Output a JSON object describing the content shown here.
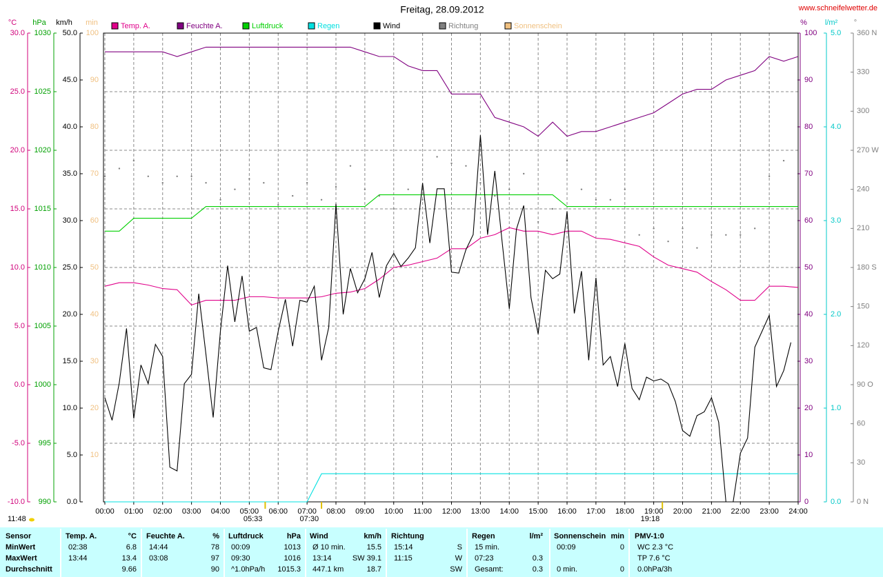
{
  "title": "Freitag, 28.09.2012",
  "source": "www.schneifelwetter.de",
  "chart_data": {
    "type": "line",
    "xlim": [
      0,
      24
    ],
    "xticks": [
      {
        "value": 0,
        "label": "00:00"
      },
      {
        "value": 1,
        "label": "01:00"
      },
      {
        "value": 2,
        "label": "02:00"
      },
      {
        "value": 3,
        "label": "03:00"
      },
      {
        "value": 4,
        "label": "04:00"
      },
      {
        "value": 5,
        "label": "05:00"
      },
      {
        "value": 6,
        "label": "06:00"
      },
      {
        "value": 7,
        "label": "07:00"
      },
      {
        "value": 8,
        "label": "08:00"
      },
      {
        "value": 9,
        "label": "09:00"
      },
      {
        "value": 10,
        "label": "10:00"
      },
      {
        "value": 11,
        "label": "11:00"
      },
      {
        "value": 12,
        "label": "12:00"
      },
      {
        "value": 13,
        "label": "13:00"
      },
      {
        "value": 14,
        "label": "14:00"
      },
      {
        "value": 15,
        "label": "15:00"
      },
      {
        "value": 16,
        "label": "16:00"
      },
      {
        "value": 17,
        "label": "17:00"
      },
      {
        "value": 18,
        "label": "18:00"
      },
      {
        "value": 19,
        "label": "19:00"
      },
      {
        "value": 20,
        "label": "20:00"
      },
      {
        "value": 21,
        "label": "21:00"
      },
      {
        "value": 22,
        "label": "22:00"
      },
      {
        "value": 23,
        "label": "23:00"
      },
      {
        "value": 24,
        "label": "24:00"
      }
    ],
    "grid": true,
    "legend": "top",
    "axes": [
      {
        "id": "temp",
        "unit": "°C",
        "color": "#d0007a",
        "lim": [
          -10,
          30
        ],
        "ticks": [
          {
            "value": -10,
            "label": "-10.0"
          },
          {
            "value": -5,
            "label": "-5.0"
          },
          {
            "value": 0,
            "label": "0.0"
          },
          {
            "value": 5,
            "label": "5.0"
          },
          {
            "value": 10,
            "label": "10.0"
          },
          {
            "value": 15,
            "label": "15.0"
          },
          {
            "value": 20,
            "label": "20.0"
          },
          {
            "value": 25,
            "label": "25.0"
          },
          {
            "value": 30,
            "label": "30.0"
          }
        ]
      },
      {
        "id": "pressure",
        "unit": "hPa",
        "color": "#00a000",
        "lim": [
          990,
          1030
        ],
        "ticks": [
          990,
          995,
          1000,
          1005,
          1010,
          1015,
          1020,
          1025,
          1030
        ]
      },
      {
        "id": "wind",
        "unit": "km/h",
        "color": "#000000",
        "lim": [
          0,
          50
        ],
        "ticks": [
          {
            "value": 0,
            "label": "0.0"
          },
          {
            "value": 5,
            "label": "5.0"
          },
          {
            "value": 10,
            "label": "10.0"
          },
          {
            "value": 15,
            "label": "15.0"
          },
          {
            "value": 20,
            "label": "20.0"
          },
          {
            "value": 25,
            "label": "25.0"
          },
          {
            "value": 30,
            "label": "30.0"
          },
          {
            "value": 35,
            "label": "35.0"
          },
          {
            "value": 40,
            "label": "40.0"
          },
          {
            "value": 45,
            "label": "45.0"
          },
          {
            "value": 50,
            "label": "50.0"
          }
        ]
      },
      {
        "id": "sun",
        "unit": "min",
        "color": "#f0c080",
        "lim": [
          0,
          100
        ],
        "ticks": [
          10,
          20,
          30,
          40,
          50,
          60,
          70,
          80,
          90,
          100
        ]
      },
      {
        "id": "humidity",
        "unit": "%",
        "color": "#800080",
        "lim": [
          0,
          100
        ],
        "ticks": [
          0,
          10,
          20,
          30,
          40,
          50,
          60,
          70,
          80,
          90,
          100
        ]
      },
      {
        "id": "rain",
        "unit": "l/m²",
        "color": "#00c8c8",
        "lim": [
          0,
          5
        ],
        "ticks": [
          {
            "value": 0,
            "label": "0.0"
          },
          {
            "value": 1,
            "label": "1.0"
          },
          {
            "value": 2,
            "label": "2.0"
          },
          {
            "value": 3,
            "label": "3.0"
          },
          {
            "value": 4,
            "label": "4.0"
          },
          {
            "value": 5,
            "label": "5.0"
          }
        ]
      },
      {
        "id": "direction",
        "unit": "°",
        "color": "#808080",
        "lim": [
          0,
          360
        ],
        "ticks": [
          {
            "value": 0,
            "label": "0 N"
          },
          30,
          60,
          {
            "value": 90,
            "label": "90 O"
          },
          120,
          150,
          {
            "value": 180,
            "label": "180 S"
          },
          210,
          240,
          {
            "value": 270,
            "label": "270 W"
          },
          300,
          330,
          {
            "value": 360,
            "label": "360 N"
          }
        ]
      }
    ],
    "x": [
      0,
      0.5,
      1,
      1.5,
      2,
      2.5,
      3,
      3.5,
      4,
      4.5,
      5,
      5.5,
      6,
      6.5,
      7,
      7.5,
      8,
      8.5,
      9,
      9.5,
      10,
      10.5,
      11,
      11.5,
      12,
      12.5,
      13,
      13.5,
      14,
      14.5,
      15,
      15.5,
      16,
      16.5,
      17,
      17.5,
      18,
      18.5,
      19,
      19.5,
      20,
      20.5,
      21,
      21.5,
      22,
      22.5,
      23,
      23.5,
      24
    ],
    "series": [
      {
        "name": "Temp. A.",
        "color": "#e0008a",
        "axis": "temp",
        "values": [
          8.4,
          8.7,
          8.7,
          8.5,
          8.2,
          8.1,
          6.8,
          7.2,
          7.2,
          7.2,
          7.5,
          7.5,
          7.4,
          7.4,
          7.4,
          7.5,
          7.8,
          7.9,
          8.2,
          9.0,
          10.0,
          10.2,
          10.5,
          10.8,
          11.6,
          11.6,
          12.5,
          12.8,
          13.4,
          13.1,
          13.1,
          12.8,
          13.1,
          13.1,
          12.5,
          12.4,
          12.1,
          11.8,
          10.9,
          10.2,
          9.9,
          9.6,
          8.8,
          8.1,
          7.2,
          7.2,
          8.4,
          8.4,
          8.3
        ]
      },
      {
        "name": "Feuchte A.",
        "color": "#800080",
        "axis": "humidity",
        "values": [
          96,
          96,
          96,
          96,
          96,
          95,
          96,
          97,
          97,
          97,
          97,
          97,
          97,
          97,
          97,
          97,
          97,
          97,
          96,
          95,
          95,
          93,
          92,
          92,
          87,
          87,
          87,
          82,
          81,
          80,
          78,
          81,
          78,
          79,
          79,
          80,
          81,
          82,
          83,
          85,
          87,
          88,
          88,
          90,
          91,
          92,
          95,
          94,
          95
        ]
      },
      {
        "name": "Luftdruck",
        "color": "#00d000",
        "axis": "pressure",
        "values": [
          1013.1,
          1013.1,
          1014.2,
          1014.2,
          1014.2,
          1014.2,
          1014.2,
          1015.2,
          1015.2,
          1015.2,
          1015.2,
          1015.2,
          1015.2,
          1015.2,
          1015.2,
          1015.2,
          1015.2,
          1015.2,
          1015.2,
          1016.2,
          1016.2,
          1016.2,
          1016.2,
          1016.2,
          1016.2,
          1016.2,
          1016.2,
          1016.2,
          1016.2,
          1016.2,
          1016.2,
          1016.2,
          1015.2,
          1015.2,
          1015.2,
          1015.2,
          1015.2,
          1015.2,
          1015.2,
          1015.2,
          1015.2,
          1015.2,
          1015.2,
          1015.2,
          1015.2,
          1015.2,
          1015.2,
          1015.2,
          1015.2
        ]
      },
      {
        "name": "Regen",
        "color": "#00e0e0",
        "axis": "rain",
        "values": [
          0,
          0,
          0,
          0,
          0,
          0,
          0,
          0,
          0,
          0,
          0,
          0,
          0,
          0,
          0,
          0.3,
          0.3,
          0.3,
          0.3,
          0.3,
          0.3,
          0.3,
          0.3,
          0.3,
          0.3,
          0.3,
          0.3,
          0.3,
          0.3,
          0.3,
          0.3,
          0.3,
          0.3,
          0.3,
          0.3,
          0.3,
          0.3,
          0.3,
          0.3,
          0.3,
          0.3,
          0.3,
          0.3,
          0.3,
          0.3,
          0.3,
          0.3,
          0.3,
          0.3
        ]
      },
      {
        "name": "Wind",
        "color": "#000000",
        "axis": "wind",
        "x": [
          0,
          0.25,
          0.5,
          0.75,
          1,
          1.25,
          1.5,
          1.75,
          2,
          2.25,
          2.5,
          2.75,
          3,
          3.25,
          3.5,
          3.75,
          4,
          4.25,
          4.5,
          4.75,
          5,
          5.25,
          5.5,
          5.75,
          6,
          6.25,
          6.5,
          6.75,
          7,
          7.25,
          7.5,
          7.75,
          8,
          8.25,
          8.5,
          8.75,
          9,
          9.25,
          9.5,
          9.75,
          10,
          10.25,
          10.5,
          10.75,
          11,
          11.25,
          11.5,
          11.75,
          12,
          12.25,
          12.5,
          12.75,
          13,
          13.25,
          13.5,
          13.75,
          14,
          14.25,
          14.5,
          14.75,
          15,
          15.25,
          15.5,
          15.75,
          16,
          16.25,
          16.5,
          16.75,
          17,
          17.25,
          17.5,
          17.75,
          18,
          18.25,
          18.5,
          18.75,
          19,
          19.25,
          19.5,
          19.75,
          20,
          20.25,
          20.5,
          20.75,
          21,
          21.25,
          21.5,
          21.75,
          22,
          22.25,
          22.5,
          22.75,
          23,
          23.25,
          23.5,
          23.75
        ],
        "values": [
          11.1,
          8.7,
          12.7,
          18.5,
          8.9,
          14.6,
          12.6,
          16.8,
          15.5,
          3.7,
          3.3,
          12.6,
          13.6,
          22.2,
          15.7,
          9.0,
          18.2,
          25.2,
          19.2,
          24.1,
          18.2,
          18.6,
          14.3,
          14.1,
          18.2,
          21.6,
          16.6,
          21.5,
          21.3,
          23.0,
          15.1,
          18.6,
          31.8,
          20.0,
          24.9,
          22.3,
          23.8,
          26.6,
          21.8,
          25.2,
          26.5,
          25.1,
          26.0,
          27.1,
          34.0,
          27.6,
          33.4,
          33.4,
          24.5,
          24.4,
          26.9,
          28.5,
          39.1,
          28.5,
          35.3,
          27.8,
          20.6,
          29.1,
          31.6,
          21.8,
          17.9,
          24.7,
          23.8,
          24.3,
          31.0,
          20.1,
          24.6,
          15.1,
          23.9,
          14.6,
          15.5,
          12.3,
          16.9,
          12.1,
          10.9,
          13.3,
          12.9,
          13.1,
          12.6,
          10.7,
          7.6,
          7.0,
          9.2,
          9.6,
          11.1,
          8.5,
          0,
          0,
          5.2,
          6.8,
          16.5,
          18.2,
          19.9,
          12.3,
          14.0,
          17.0
        ]
      },
      {
        "name": "Richtung",
        "color": "#808080",
        "axis": "direction",
        "style": "dots",
        "values": [
          250,
          256,
          262,
          250,
          245,
          250,
          250,
          245,
          232,
          240,
          248,
          245,
          228,
          235,
          245,
          232,
          242,
          258,
          240,
          235,
          225,
          240,
          232,
          265,
          260,
          258,
          245,
          235,
          240,
          252,
          215,
          225,
          262,
          240,
          232,
          232,
          240,
          205,
          210,
          200,
          210,
          195,
          205,
          205,
          205,
          210,
          250,
          262,
          250
        ]
      },
      {
        "name": "Sonnenschein",
        "color": "#f0c080",
        "axis": "sun"
      }
    ],
    "annotations": [
      {
        "label": "11:48"
      },
      {
        "x": 5.55,
        "label": "05:33"
      },
      {
        "x": 7.5,
        "label": "07:30"
      },
      {
        "x": 19.3,
        "label": "19:18"
      }
    ]
  },
  "table": {
    "columns": [
      {
        "name": "Sensor"
      },
      {
        "name": "Temp. A.",
        "unit": "°C"
      },
      {
        "name": "Feuchte A.",
        "unit": "%"
      },
      {
        "name": "Luftdruck",
        "unit": "hPa"
      },
      {
        "name": "Wind",
        "unit": "km/h"
      },
      {
        "name": "Richtung"
      },
      {
        "name": "Regen",
        "unit": "l/m²"
      },
      {
        "name": "Sonnenschein",
        "unit": "min"
      },
      {
        "name": "PMV-1:0"
      }
    ],
    "rows": [
      {
        "label": "MinWert",
        "cells": [
          {
            "left": "02:38",
            "right": "6.8"
          },
          {
            "left": "14:44",
            "right": "78"
          },
          {
            "left": "00:09",
            "right": "1013"
          },
          {
            "left": "Ø 10 min.",
            "right": "15.5"
          },
          {
            "left": "15:14",
            "right": "S"
          },
          {
            "left": "15 min."
          },
          {
            "left": "00:09",
            "right": "0"
          },
          {
            "left": "WC 2.3 °C"
          }
        ]
      },
      {
        "label": "MaxWert",
        "cells": [
          {
            "left": "13:44",
            "right": "13.4"
          },
          {
            "left": "03:08",
            "right": "97"
          },
          {
            "left": "09:30",
            "right": "1016"
          },
          {
            "left": "13:14",
            "right": "SW 39.1"
          },
          {
            "left": "11:15",
            "right": "W"
          },
          {
            "left": "07:23",
            "right": "0.3"
          },
          {},
          {
            "left": "TP 7.6 °C"
          }
        ]
      },
      {
        "label": "Durchschnitt",
        "cells": [
          {
            "right": "9.66"
          },
          {
            "right": "90"
          },
          {
            "left": "^1.0hPa/h",
            "right": "1015.3"
          },
          {
            "left": "447.1 km",
            "right": "18.7"
          },
          {
            "right": "SW"
          },
          {
            "left": "Gesamt:",
            "right": "0.3"
          },
          {
            "left": "0 min.",
            "right": "0"
          },
          {
            "left": "0.0hPa/3h"
          }
        ]
      }
    ]
  }
}
